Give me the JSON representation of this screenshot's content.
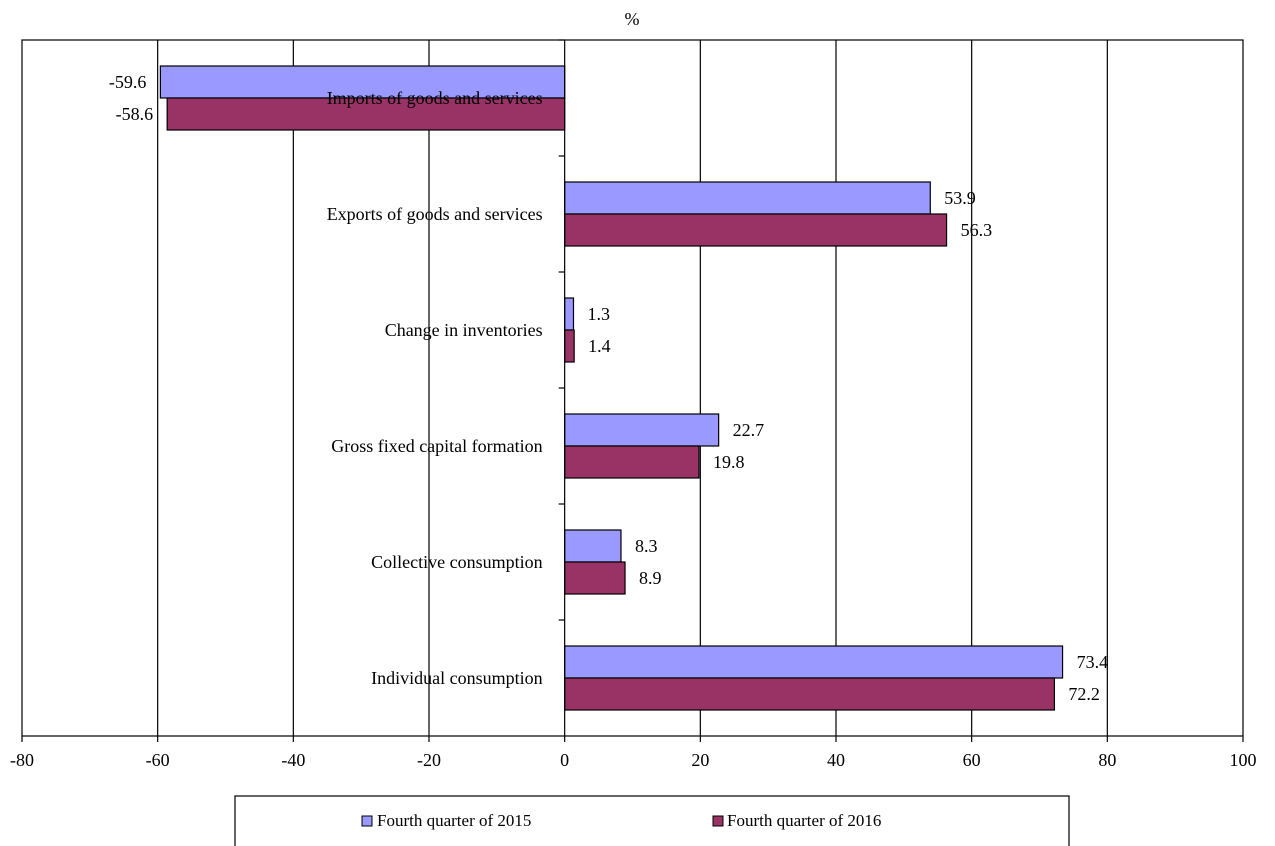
{
  "chart_data": {
    "type": "bar",
    "orientation": "horizontal",
    "unit_label": "%",
    "categories": [
      "Imports of goods and services",
      "Exports of goods and services",
      "Change in inventories",
      "Gross fixed capital formation",
      "Collective consumption",
      "Individual consumption"
    ],
    "series": [
      {
        "name": "Fourth quarter of 2015",
        "color": "#9999ff",
        "values": [
          -59.6,
          53.9,
          1.3,
          22.7,
          8.3,
          73.4
        ]
      },
      {
        "name": "Fourth quarter of 2016",
        "color": "#993366",
        "values": [
          -58.6,
          56.3,
          1.4,
          19.8,
          8.9,
          72.2
        ]
      }
    ],
    "xlim": [
      -80,
      100
    ],
    "xticks": [
      -80,
      -60,
      -40,
      -20,
      0,
      20,
      40,
      60,
      80,
      100
    ],
    "grid": "vertical major gridlines",
    "legend_position": "bottom"
  }
}
